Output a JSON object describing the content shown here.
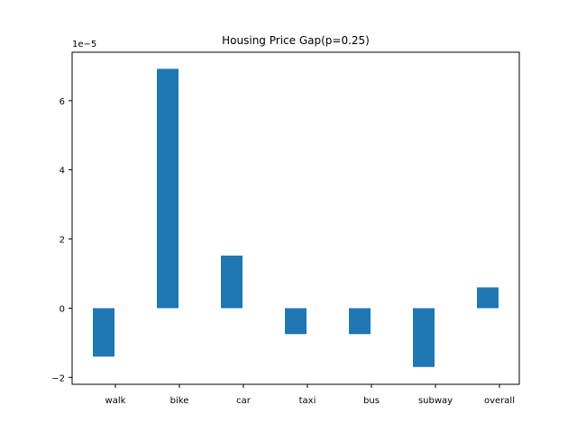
{
  "chart_data": {
    "type": "bar",
    "title": "Housing Price Gap(p=0.25)",
    "xlabel": "",
    "ylabel": "",
    "categories": [
      "walk",
      "bike",
      "car",
      "taxi",
      "bus",
      "subway",
      "overall"
    ],
    "values": [
      -1.4e-05,
      6.92e-05,
      1.52e-05,
      -7.5e-06,
      -7.5e-06,
      -1.7e-05,
      6e-06
    ],
    "ylim": [
      -2.2e-05,
      7.4e-05
    ],
    "y_ticks": [
      -2,
      0,
      2,
      4,
      6
    ],
    "y_tick_labels": [
      "−2",
      "0",
      "2",
      "4",
      "6"
    ],
    "y_offset_label": "1e−5",
    "bar_color": "#1f77b4",
    "grid": false
  }
}
